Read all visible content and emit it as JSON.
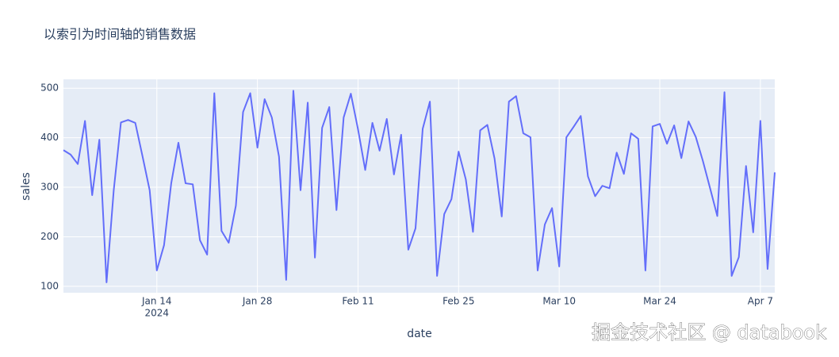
{
  "chart_data": {
    "type": "line",
    "title": "以索引为时间轴的销售数据",
    "x_label": "date",
    "y_label": "sales",
    "x": [
      "2024-01-01",
      "2024-01-02",
      "2024-01-03",
      "2024-01-04",
      "2024-01-05",
      "2024-01-06",
      "2024-01-07",
      "2024-01-08",
      "2024-01-09",
      "2024-01-10",
      "2024-01-11",
      "2024-01-12",
      "2024-01-13",
      "2024-01-14",
      "2024-01-15",
      "2024-01-16",
      "2024-01-17",
      "2024-01-18",
      "2024-01-19",
      "2024-01-20",
      "2024-01-21",
      "2024-01-22",
      "2024-01-23",
      "2024-01-24",
      "2024-01-25",
      "2024-01-26",
      "2024-01-27",
      "2024-01-28",
      "2024-01-29",
      "2024-01-30",
      "2024-01-31",
      "2024-02-01",
      "2024-02-02",
      "2024-02-03",
      "2024-02-04",
      "2024-02-05",
      "2024-02-06",
      "2024-02-07",
      "2024-02-08",
      "2024-02-09",
      "2024-02-10",
      "2024-02-11",
      "2024-02-12",
      "2024-02-13",
      "2024-02-14",
      "2024-02-15",
      "2024-02-16",
      "2024-02-17",
      "2024-02-18",
      "2024-02-19",
      "2024-02-20",
      "2024-02-21",
      "2024-02-22",
      "2024-02-23",
      "2024-02-24",
      "2024-02-25",
      "2024-02-26",
      "2024-02-27",
      "2024-02-28",
      "2024-02-29",
      "2024-03-01",
      "2024-03-02",
      "2024-03-03",
      "2024-03-04",
      "2024-03-05",
      "2024-03-06",
      "2024-03-07",
      "2024-03-08",
      "2024-03-09",
      "2024-03-10",
      "2024-03-11",
      "2024-03-12",
      "2024-03-13",
      "2024-03-14",
      "2024-03-15",
      "2024-03-16",
      "2024-03-17",
      "2024-03-18",
      "2024-03-19",
      "2024-03-20",
      "2024-03-21",
      "2024-03-22",
      "2024-03-23",
      "2024-03-24",
      "2024-03-25",
      "2024-03-26",
      "2024-03-27",
      "2024-03-28",
      "2024-03-29",
      "2024-03-30",
      "2024-03-31",
      "2024-04-01",
      "2024-04-02",
      "2024-04-03",
      "2024-04-04",
      "2024-04-05",
      "2024-04-06",
      "2024-04-07",
      "2024-04-08",
      "2024-04-09"
    ],
    "series": [
      {
        "name": "sales",
        "color": "#636efa",
        "values": [
          375,
          366,
          347,
          434,
          284,
          396,
          108,
          294,
          431,
          436,
          430,
          363,
          294,
          132,
          183,
          308,
          390,
          308,
          306,
          193,
          164,
          490,
          212,
          188,
          263,
          452,
          490,
          380,
          478,
          441,
          362,
          113,
          495,
          294,
          471,
          158,
          420,
          462,
          254,
          441,
          489,
          417,
          335,
          430,
          374,
          438,
          326,
          406,
          174,
          217,
          418,
          473,
          121,
          246,
          276,
          372,
          316,
          210,
          415,
          426,
          358,
          241,
          473,
          484,
          409,
          401,
          132,
          225,
          258,
          140,
          401,
          422,
          444,
          322,
          282,
          303,
          298,
          370,
          327,
          409,
          398,
          132,
          423,
          428,
          388,
          425,
          359,
          433,
          402,
          353,
          298,
          242,
          492,
          121,
          159,
          343,
          209,
          434,
          135,
          330
        ]
      }
    ],
    "xlim": [
      "2024-01-01",
      "2024-04-09"
    ],
    "xticks": [
      {
        "value": "2024-01-14",
        "label": "Jan 14"
      },
      {
        "value": "2024-01-28",
        "label": "Jan 28"
      },
      {
        "value": "2024-02-11",
        "label": "Feb 11"
      },
      {
        "value": "2024-02-25",
        "label": "Feb 25"
      },
      {
        "value": "2024-03-10",
        "label": "Mar 10"
      },
      {
        "value": "2024-03-24",
        "label": "Mar 24"
      },
      {
        "value": "2024-04-07",
        "label": "Apr 7"
      }
    ],
    "xtick_year": "2024",
    "ylim": [
      87,
      518
    ],
    "yticks": [
      100,
      200,
      300,
      400,
      500
    ],
    "grid": true,
    "watermark": "掘金技术社区 @ databook"
  }
}
